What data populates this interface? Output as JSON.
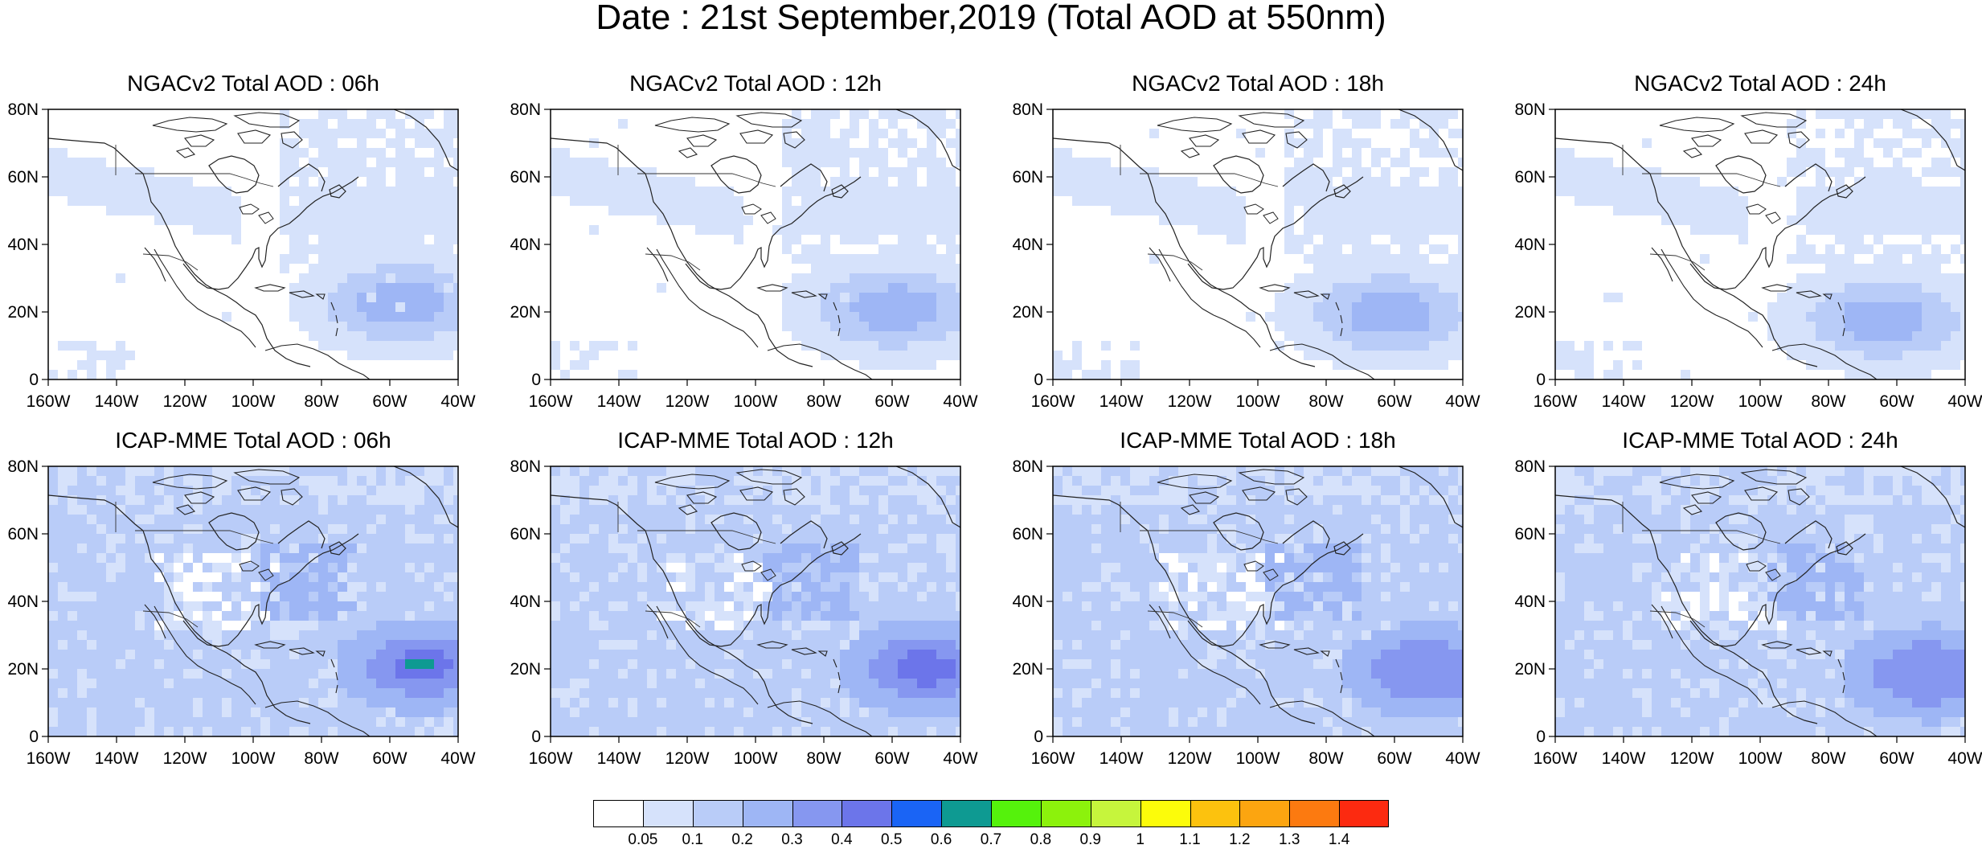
{
  "title": "Date : 21st September,2019 (Total AOD at 550nm)",
  "lat_ticks": [
    "80N",
    "60N",
    "40N",
    "20N",
    "0"
  ],
  "lon_ticks": [
    "160W",
    "140W",
    "120W",
    "100W",
    "80W",
    "60W",
    "40W"
  ],
  "map_extent": {
    "lon_min": -160,
    "lon_max": -40,
    "lat_min": 0,
    "lat_max": 80
  },
  "panels": [
    {
      "title": "NGACv2 Total AOD : 06h",
      "model": "NGACv2",
      "hour": "06h"
    },
    {
      "title": "NGACv2 Total AOD : 12h",
      "model": "NGACv2",
      "hour": "12h"
    },
    {
      "title": "NGACv2 Total AOD : 18h",
      "model": "NGACv2",
      "hour": "18h"
    },
    {
      "title": "NGACv2 Total AOD : 24h",
      "model": "NGACv2",
      "hour": "24h"
    },
    {
      "title": "ICAP-MME Total AOD : 06h",
      "model": "ICAP-MME",
      "hour": "06h"
    },
    {
      "title": "ICAP-MME Total AOD : 12h",
      "model": "ICAP-MME",
      "hour": "12h"
    },
    {
      "title": "ICAP-MME Total AOD : 18h",
      "model": "ICAP-MME",
      "hour": "18h"
    },
    {
      "title": "ICAP-MME Total AOD : 24h",
      "model": "ICAP-MME",
      "hour": "24h"
    }
  ],
  "colorbar": {
    "labels": [
      "0.05",
      "0.1",
      "0.2",
      "0.3",
      "0.4",
      "0.5",
      "0.6",
      "0.7",
      "0.8",
      "0.9",
      "1",
      "1.1",
      "1.2",
      "1.3",
      "1.4"
    ],
    "colors": [
      "#ffffff",
      "#d6e2fb",
      "#b9ccf8",
      "#9eb6f5",
      "#8697f0",
      "#6c75ea",
      "#1a64f5",
      "#0e9a92",
      "#55f20c",
      "#8cf20c",
      "#c6f53c",
      "#fcfc0a",
      "#fcc20e",
      "#fca510",
      "#fc7a10",
      "#fc2a10"
    ]
  }
}
